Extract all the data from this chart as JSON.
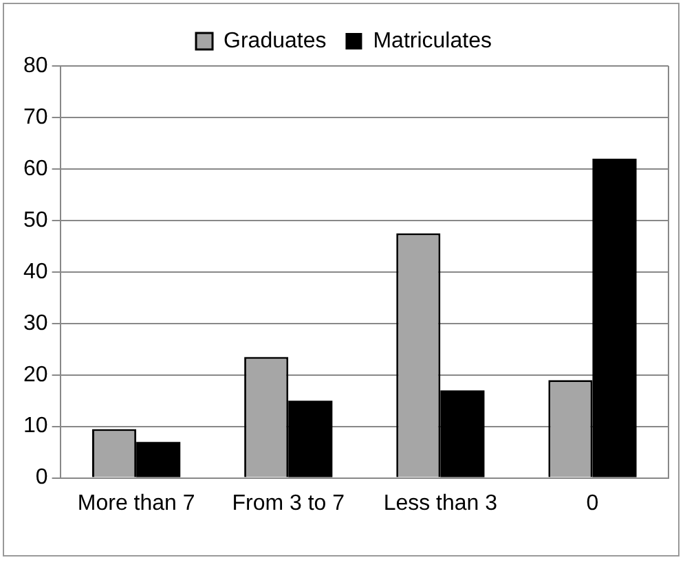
{
  "chart_data": {
    "type": "bar",
    "categories": [
      "More than 7",
      "From 3 to 7",
      "Less than 3",
      "0"
    ],
    "series": [
      {
        "name": "Graduates",
        "color": "#a6a6a6",
        "values": [
          9.5,
          23.5,
          47.5,
          19
        ]
      },
      {
        "name": "Matriculates",
        "color": "#000000",
        "values": [
          7,
          15,
          17,
          62
        ]
      }
    ],
    "ylim": [
      0,
      80
    ],
    "yticks": [
      0,
      10,
      20,
      30,
      40,
      50,
      60,
      70,
      80
    ],
    "grid": "y",
    "legend": "top"
  }
}
